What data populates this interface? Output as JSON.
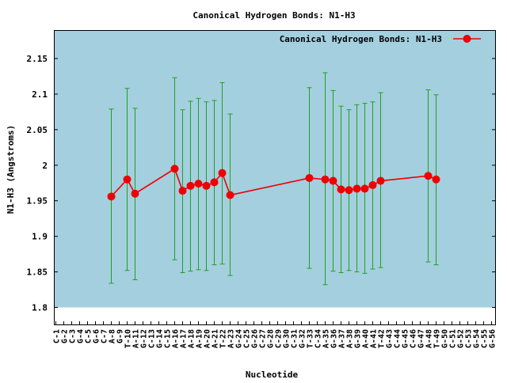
{
  "chart_data": {
    "type": "line",
    "title": "Canonical Hydrogen Bonds: N1-H3",
    "xlabel": "Nucleotide",
    "ylabel": "N1-H3 (Angstroms)",
    "ylim": [
      1.775,
      2.19
    ],
    "yticks": [
      1.8,
      1.85,
      1.9,
      1.95,
      2,
      2.05,
      2.1,
      2.15
    ],
    "ytick_labels": [
      "1.8",
      "1.85",
      "1.9",
      "1.95",
      "2",
      "2.05",
      "2.1",
      "2.15"
    ],
    "plot_background": "#a4cfdf",
    "categories": [
      "C-1",
      "G-2",
      "C-3",
      "G-4",
      "C-5",
      "G-6",
      "C-7",
      "A-8",
      "G-9",
      "T-10",
      "A-11",
      "G-12",
      "C-13",
      "G-14",
      "C-15",
      "A-16",
      "A-17",
      "A-18",
      "A-19",
      "A-20",
      "A-21",
      "T-22",
      "A-23",
      "G-24",
      "C-25",
      "G-26",
      "C-27",
      "G-28",
      "C-29",
      "G-30",
      "C-31",
      "G-32",
      "T-33",
      "C-34",
      "A-35",
      "G-36",
      "A-37",
      "A-38",
      "G-39",
      "A-40",
      "A-41",
      "T-42",
      "G-43",
      "C-44",
      "G-45",
      "C-46",
      "G-47",
      "A-48",
      "T-49",
      "G-50",
      "C-51",
      "G-52",
      "C-53",
      "G-54",
      "C-55",
      "G-56"
    ],
    "series": [
      {
        "name": "Canonical Hydrogen Bonds: N1-H3",
        "color": "#ee0000",
        "errorbar_color": "#20a020",
        "points": [
          {
            "x": "A-8",
            "y": 1.956,
            "lo": 1.834,
            "hi": 2.079
          },
          {
            "x": "T-10",
            "y": 1.98,
            "lo": 1.852,
            "hi": 2.108
          },
          {
            "x": "A-11",
            "y": 1.96,
            "lo": 1.839,
            "hi": 2.08
          },
          {
            "x": "A-16",
            "y": 1.995,
            "lo": 1.867,
            "hi": 2.123
          },
          {
            "x": "A-17",
            "y": 1.964,
            "lo": 1.849,
            "hi": 2.078
          },
          {
            "x": "A-18",
            "y": 1.971,
            "lo": 1.851,
            "hi": 2.09
          },
          {
            "x": "A-19",
            "y": 1.974,
            "lo": 1.853,
            "hi": 2.094
          },
          {
            "x": "A-20",
            "y": 1.971,
            "lo": 1.852,
            "hi": 2.089
          },
          {
            "x": "A-21",
            "y": 1.976,
            "lo": 1.86,
            "hi": 2.091
          },
          {
            "x": "T-22",
            "y": 1.989,
            "lo": 1.861,
            "hi": 2.116
          },
          {
            "x": "A-23",
            "y": 1.958,
            "lo": 1.845,
            "hi": 2.072
          },
          {
            "x": "T-33",
            "y": 1.982,
            "lo": 1.855,
            "hi": 2.109
          },
          {
            "x": "A-35",
            "y": 1.98,
            "lo": 1.832,
            "hi": 2.13
          },
          {
            "x": "G-36",
            "y": 1.978,
            "lo": 1.851,
            "hi": 2.105
          },
          {
            "x": "A-37",
            "y": 1.966,
            "lo": 1.849,
            "hi": 2.083
          },
          {
            "x": "A-38",
            "y": 1.965,
            "lo": 1.852,
            "hi": 2.078
          },
          {
            "x": "G-39",
            "y": 1.967,
            "lo": 1.85,
            "hi": 2.085
          },
          {
            "x": "A-40",
            "y": 1.967,
            "lo": 1.848,
            "hi": 2.087
          },
          {
            "x": "A-41",
            "y": 1.972,
            "lo": 1.854,
            "hi": 2.089
          },
          {
            "x": "T-42",
            "y": 1.978,
            "lo": 1.856,
            "hi": 2.102
          },
          {
            "x": "A-48",
            "y": 1.985,
            "lo": 1.864,
            "hi": 2.106
          },
          {
            "x": "T-49",
            "y": 1.98,
            "lo": 1.86,
            "hi": 2.099
          }
        ]
      }
    ],
    "legend_position": "top-right",
    "grid": false
  }
}
